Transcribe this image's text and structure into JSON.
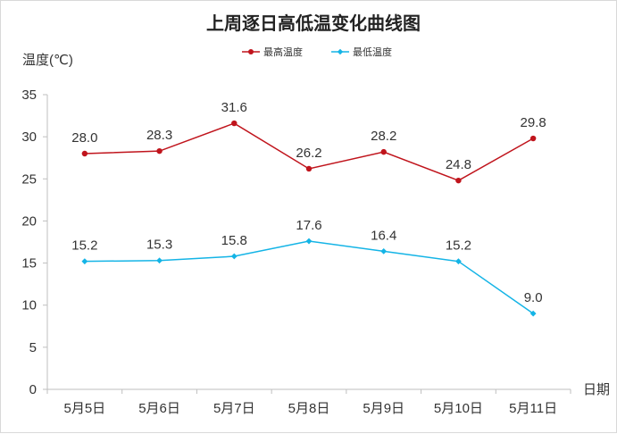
{
  "chart_data": {
    "type": "line",
    "title": "上周逐日高低温变化曲线图",
    "ylabel": "温度(℃)",
    "xlabel": "日期",
    "ylim": [
      0,
      35
    ],
    "yticks": [
      0,
      5,
      10,
      15,
      20,
      25,
      30,
      35
    ],
    "grid": false,
    "legend_position": "top",
    "categories": [
      "5月5日",
      "5月6日",
      "5月7日",
      "5月8日",
      "5月9日",
      "5月10日",
      "5月11日"
    ],
    "series": [
      {
        "name": "最高温度",
        "color": "#c0141c",
        "values": [
          28.0,
          28.3,
          31.6,
          26.2,
          28.2,
          24.8,
          29.8
        ],
        "labels": [
          "28.0",
          "28.3",
          "31.6",
          "26.2",
          "28.2",
          "24.8",
          "29.8"
        ],
        "marker": "circle"
      },
      {
        "name": "最低温度",
        "color": "#14b4e6",
        "values": [
          15.2,
          15.3,
          15.8,
          17.6,
          16.4,
          15.2,
          9.0
        ],
        "labels": [
          "15.2",
          "15.3",
          "15.8",
          "17.6",
          "16.4",
          "15.2",
          "9.0"
        ],
        "marker": "diamond"
      }
    ]
  }
}
